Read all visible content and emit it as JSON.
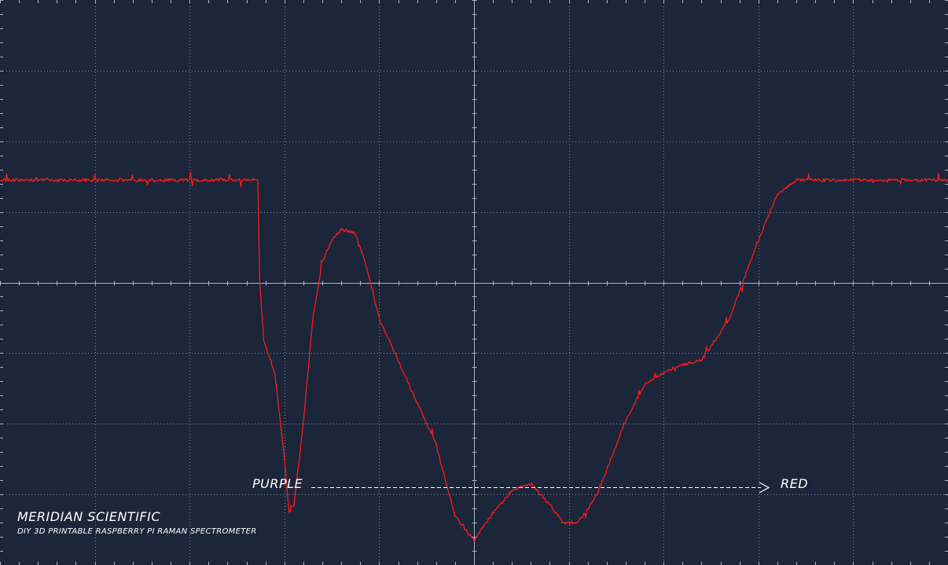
{
  "annotations": {
    "left_label": "PURPLE",
    "right_label": "RED"
  },
  "branding": {
    "title": "MERIDIAN SCIENTIFIC",
    "subtitle": "DIY 3D PRINTABLE RASPBERRY PI RAMAN SPECTROMETER"
  },
  "colors": {
    "background": "#1c263a",
    "grid": "#7f8aa0",
    "axis": "#a9b4c8",
    "trace": "#ff1a1a",
    "text": "#ffffff"
  },
  "chart_data": {
    "type": "line",
    "title": "",
    "xlabel": "",
    "ylabel": "",
    "grid": true,
    "divisions": {
      "x": 10,
      "y": 8
    },
    "xlim": [
      0,
      10
    ],
    "ylim": [
      -4,
      4
    ],
    "series": [
      {
        "x": [
          0,
          1,
          2,
          2.7,
          2.72,
          2.74,
          2.78,
          2.9,
          3.0,
          3.05,
          3.1,
          3.2,
          3.3,
          3.4,
          3.5,
          3.6,
          3.75,
          3.85,
          4.0,
          4.3,
          4.6,
          4.8,
          5.0,
          5.15,
          5.4,
          5.6,
          5.8,
          5.95,
          6.1,
          6.3,
          6.6,
          6.8,
          7.1,
          7.4,
          7.7,
          8.0,
          8.2,
          8.4,
          8.55,
          8.6,
          8.64,
          8.67,
          8.7,
          8.8,
          9.0,
          9.5,
          10
        ],
        "y": [
          1.45,
          1.45,
          1.45,
          1.45,
          1.45,
          0.0,
          -0.8,
          -1.3,
          -2.5,
          -3.25,
          -3.15,
          -2.0,
          -0.5,
          0.3,
          0.6,
          0.75,
          0.7,
          0.3,
          -0.5,
          -1.4,
          -2.3,
          -3.3,
          -3.65,
          -3.35,
          -2.95,
          -2.85,
          -3.15,
          -3.4,
          -3.4,
          -3.0,
          -1.95,
          -1.45,
          -1.2,
          -1.1,
          -0.5,
          0.6,
          1.25,
          1.45,
          1.45,
          1.45,
          1.45,
          1.45,
          1.45,
          1.45,
          1.45,
          1.45,
          1.45
        ]
      }
    ]
  }
}
